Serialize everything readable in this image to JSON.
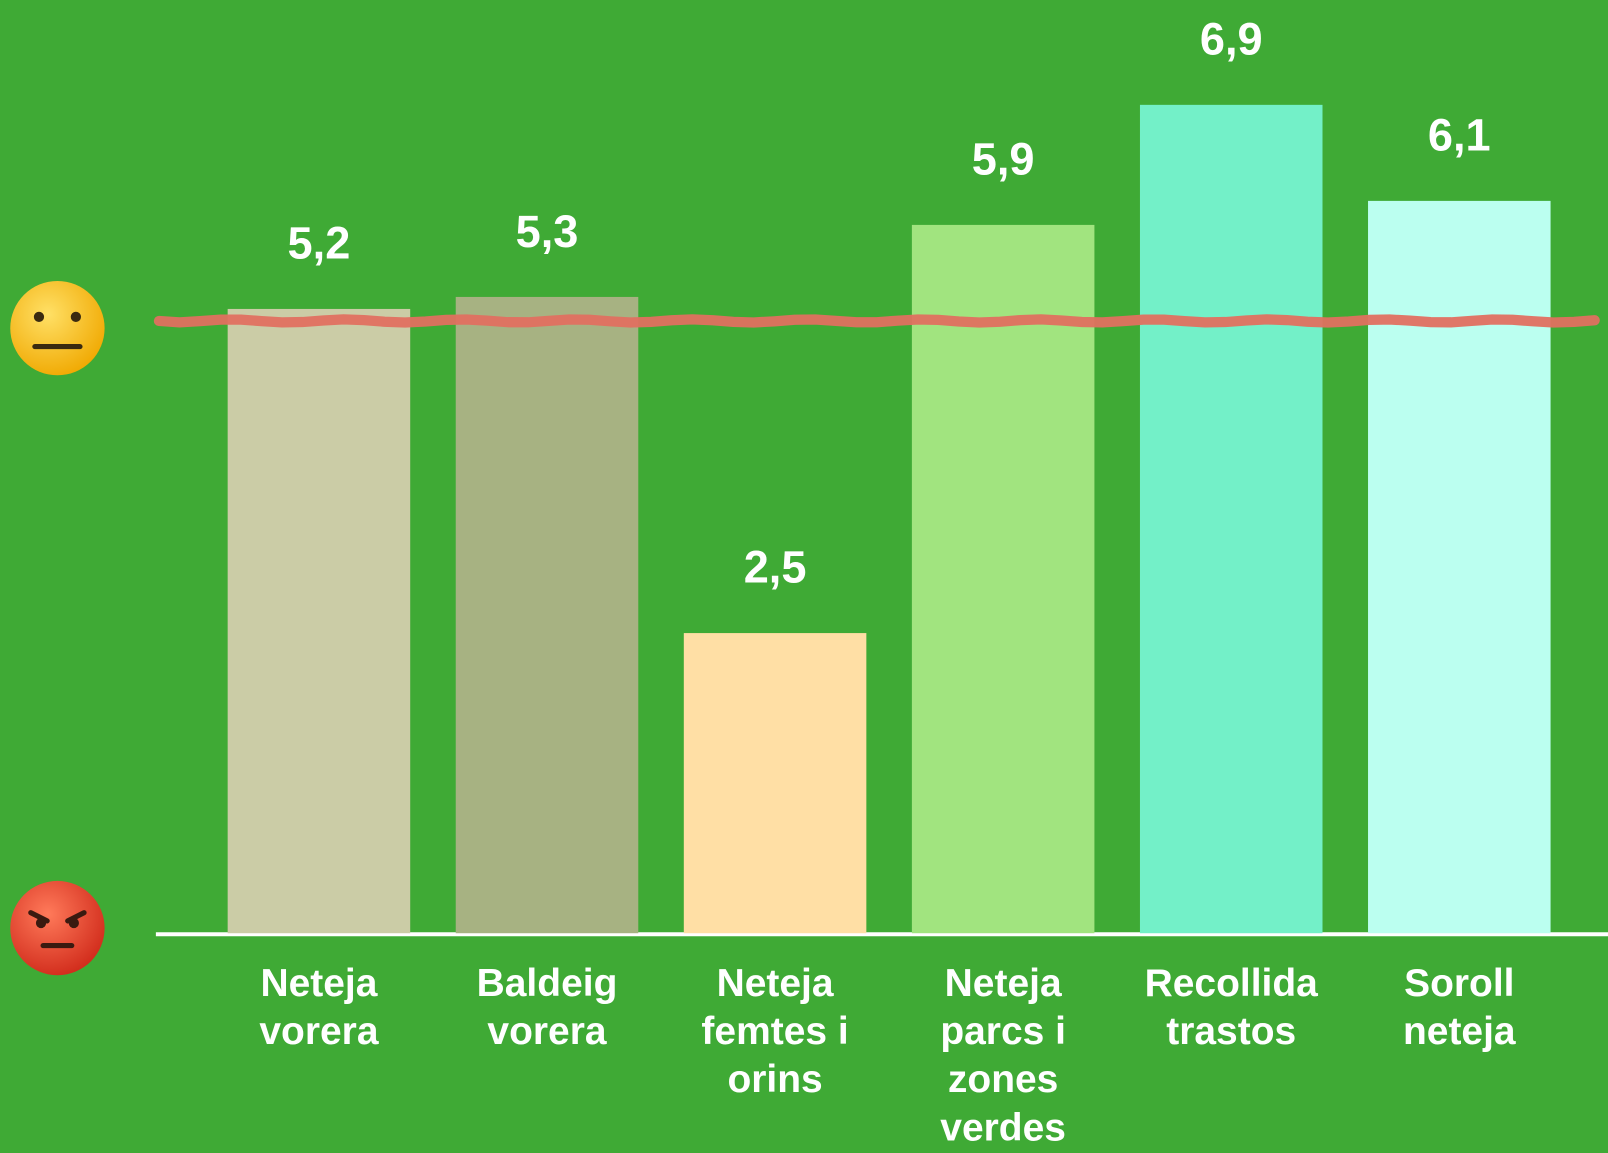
{
  "chart_data": {
    "type": "bar",
    "categories": [
      "Neteja vorera",
      "Baldeig vorera",
      "Neteja femtes i orins",
      "Neteja parcs i zones verdes",
      "Recollida trastos",
      "Soroll neteja"
    ],
    "values": [
      5.2,
      5.3,
      2.5,
      5.9,
      6.9,
      6.1
    ],
    "value_labels": [
      "5,2",
      "5,3",
      "2,5",
      "5,9",
      "6,9",
      "6,1"
    ],
    "colors": [
      "#cbcca6",
      "#a7b282",
      "#ffdfa5",
      "#a1e47f",
      "#73f0c8",
      "#bbfff0"
    ],
    "ylim": [
      0,
      7.5
    ],
    "threshold": 5.1,
    "threshold_color": "#e07060"
  }
}
